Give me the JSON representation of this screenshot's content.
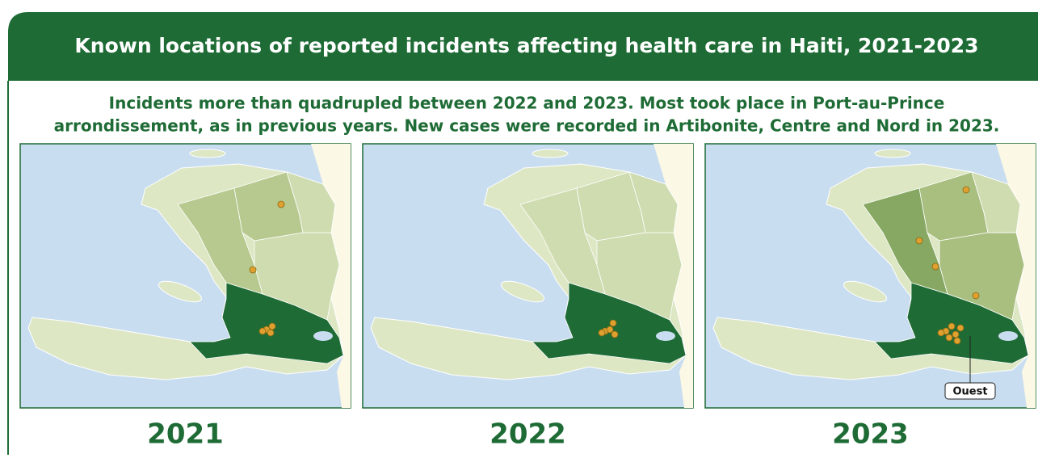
{
  "header": {
    "title": "Known locations of reported incidents affecting health care in Haiti, 2021-2023"
  },
  "subtitle": [
    "Incidents more than quadrupled between 2022 and 2023. Most  took place in Port-au-Prince",
    "arrondissement, as in previous years. New cases were recorded in Artibonite, Centre and Nord in 2023."
  ],
  "panels": [
    {
      "year": "2021"
    },
    {
      "year": "2022"
    },
    {
      "year": "2023"
    }
  ],
  "region_label": "Ouest"
}
